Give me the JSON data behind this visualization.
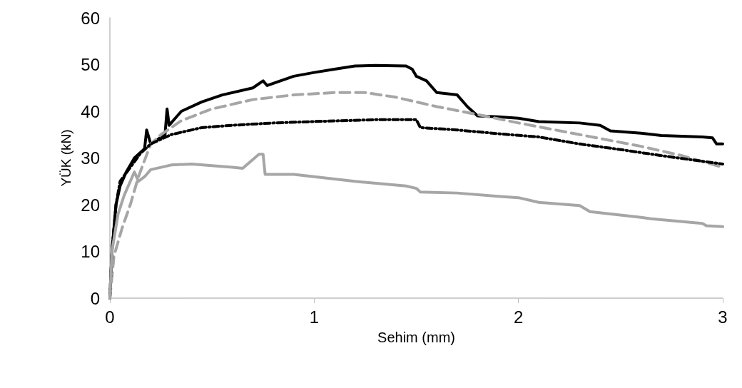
{
  "chart_data": {
    "type": "line",
    "xlabel": "Sehim (mm)",
    "ylabel": "YÜK (kN)",
    "xlim": [
      0,
      3
    ],
    "xticks": [
      0,
      1,
      2,
      3
    ],
    "ylim": [
      0,
      60
    ],
    "yticks": [
      0,
      10,
      20,
      30,
      40,
      50,
      60
    ],
    "marker": "none",
    "series": [
      {
        "color": "#000000",
        "line_style": "solid",
        "x": [
          0,
          0.01,
          0.03,
          0.05,
          0.08,
          0.12,
          0.17,
          0.18,
          0.2,
          0.27,
          0.28,
          0.29,
          0.35,
          0.45,
          0.55,
          0.7,
          0.75,
          0.77,
          0.9,
          1.0,
          1.1,
          1.2,
          1.3,
          1.45,
          1.48,
          1.5,
          1.55,
          1.6,
          1.7,
          1.75,
          1.8,
          1.9,
          2.0,
          2.1,
          2.3,
          2.4,
          2.45,
          2.6,
          2.7,
          2.9,
          2.95,
          2.97,
          3.0
        ],
        "values": [
          0,
          10,
          20,
          24,
          27,
          30,
          32,
          36,
          33,
          35,
          40.5,
          37,
          40,
          42,
          43.5,
          45,
          46.5,
          45.5,
          47.5,
          48.3,
          49,
          49.7,
          49.8,
          49.7,
          49,
          47.5,
          46.5,
          44,
          43.5,
          41,
          39,
          38.8,
          38.5,
          37.8,
          37.5,
          37,
          35.8,
          35.3,
          34.8,
          34.5,
          34.3,
          33,
          33
        ]
      },
      {
        "color": "#a6a6a6",
        "line_style": "dashed",
        "x": [
          0,
          0.02,
          0.06,
          0.1,
          0.14,
          0.2,
          0.25,
          0.35,
          0.5,
          0.7,
          0.9,
          1.1,
          1.25,
          1.4,
          1.6,
          1.8,
          2.0,
          2.3,
          2.6,
          2.8,
          3.0
        ],
        "values": [
          0,
          9,
          15,
          20,
          26,
          33,
          35,
          38,
          40.5,
          42.5,
          43.5,
          44,
          44,
          43,
          41,
          39.3,
          37.5,
          35,
          32.5,
          30.5,
          28
        ]
      },
      {
        "color": "#000000",
        "line_style": "dashdot",
        "x": [
          0,
          0.01,
          0.03,
          0.05,
          0.1,
          0.15,
          0.2,
          0.3,
          0.45,
          0.6,
          0.8,
          1.0,
          1.3,
          1.5,
          1.52,
          1.7,
          1.9,
          2.1,
          2.3,
          2.5,
          2.7,
          2.9,
          3.0
        ],
        "values": [
          0,
          10,
          20,
          25,
          28,
          31,
          33,
          35,
          36.5,
          37,
          37.5,
          37.8,
          38.2,
          38.2,
          36.5,
          36,
          35.2,
          34.5,
          33,
          31.8,
          30.5,
          29.3,
          28.7
        ]
      },
      {
        "color": "#a6a6a6",
        "line_style": "solid",
        "x": [
          0,
          0.01,
          0.04,
          0.07,
          0.1,
          0.12,
          0.14,
          0.17,
          0.2,
          0.3,
          0.4,
          0.6,
          0.65,
          0.73,
          0.75,
          0.76,
          0.9,
          1.2,
          1.45,
          1.5,
          1.52,
          1.7,
          1.9,
          2.0,
          2.1,
          2.3,
          2.35,
          2.6,
          2.65,
          2.9,
          2.92,
          3.0
        ],
        "values": [
          0,
          10,
          18,
          22,
          25,
          27,
          25,
          26,
          27.5,
          28.5,
          28.7,
          28,
          27.8,
          30.8,
          30.8,
          26.5,
          26.5,
          25,
          24,
          23.5,
          22.7,
          22.5,
          21.8,
          21.5,
          20.5,
          19.8,
          18.5,
          17.3,
          17,
          16,
          15.5,
          15.3
        ]
      }
    ]
  }
}
